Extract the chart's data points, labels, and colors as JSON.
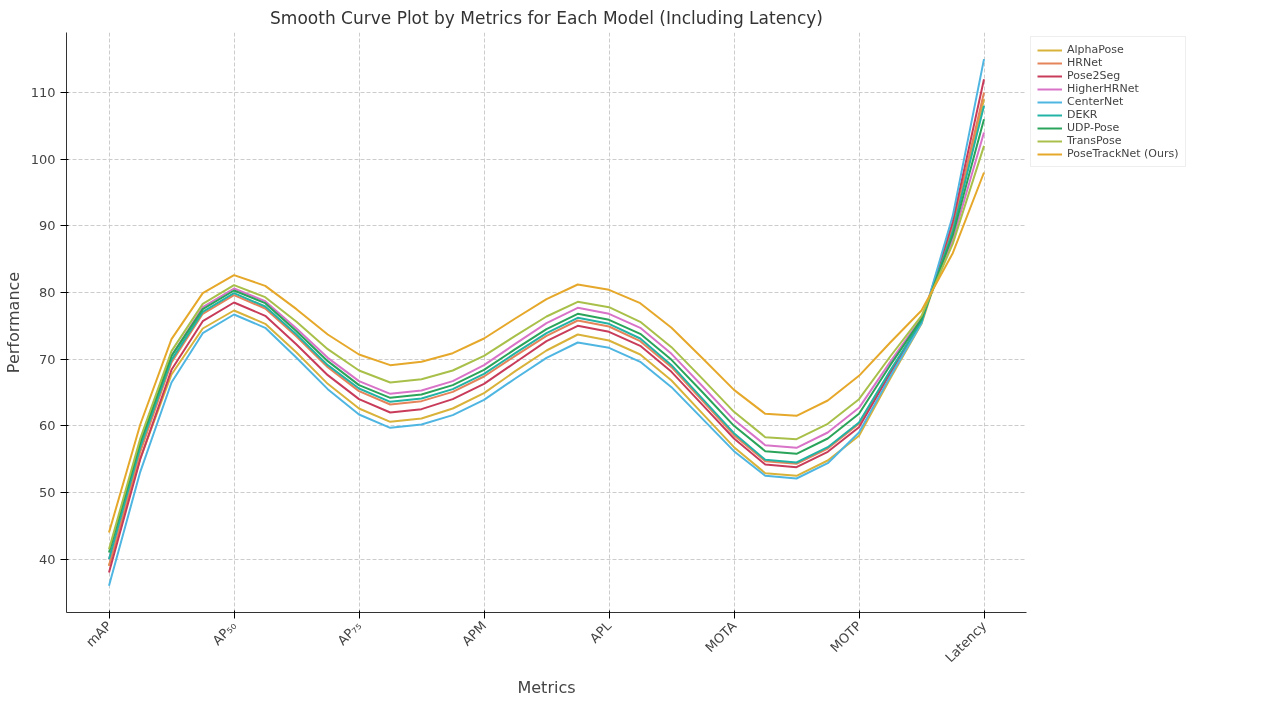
{
  "chart_data": {
    "type": "line",
    "title": "Smooth Curve Plot by Metrics for Each Model (Including Latency)",
    "xlabel": "Metrics",
    "ylabel": "Performance",
    "categories": [
      "mAP",
      null,
      null,
      null,
      "AP₅₀",
      null,
      null,
      null,
      "AP₇₅",
      null,
      null,
      null,
      "APM",
      null,
      null,
      null,
      "APL",
      null,
      null,
      null,
      "MOTA",
      null,
      null,
      null,
      "MOTP",
      null,
      null,
      null,
      "Latency"
    ],
    "ylim": [
      32,
      119
    ],
    "yticks": [
      40,
      50,
      60,
      70,
      80,
      90,
      100,
      110
    ],
    "grid": true,
    "legend": "top right",
    "marker": "none",
    "line_style": "solid",
    "series": [
      {
        "name": "AlphaPose",
        "color": "#d9b23a",
        "values": [
          39,
          55.1,
          67.7,
          74.6,
          77.3,
          75.3,
          71.0,
          66.3,
          62.6,
          60.6,
          61.1,
          62.6,
          64.9,
          68.2,
          71.3,
          73.7,
          72.8,
          70.7,
          66.8,
          61.8,
          56.8,
          52.9,
          52.5,
          54.8,
          58.5,
          67.1,
          75.3,
          89.6,
          109
        ]
      },
      {
        "name": "HRNet",
        "color": "#e5845a",
        "values": [
          39,
          56.1,
          69.5,
          76.8,
          79.6,
          77.6,
          73.4,
          68.8,
          65.2,
          63.2,
          63.7,
          65.1,
          67.4,
          70.5,
          73.5,
          75.8,
          74.9,
          72.7,
          68.8,
          63.7,
          58.6,
          54.7,
          54.3,
          56.6,
          60.3,
          68.2,
          75.7,
          89.9,
          110
        ]
      },
      {
        "name": "Pose2Seg",
        "color": "#c83c5a",
        "values": [
          38,
          55.0,
          68.4,
          75.7,
          78.5,
          76.5,
          72.2,
          67.6,
          64.0,
          62,
          62.5,
          64.0,
          66.3,
          69.5,
          72.7,
          75,
          74.1,
          72.0,
          68.1,
          63.1,
          58.1,
          54.2,
          53.8,
          56.1,
          59.8,
          67.9,
          75.6,
          90.6,
          112
        ]
      },
      {
        "name": "HigherHRNet",
        "color": "#d873c8",
        "values": [
          40,
          57.1,
          70.5,
          77.8,
          80.6,
          78.7,
          74.6,
          70.2,
          66.7,
          64.8,
          65.3,
          66.7,
          69.1,
          72.3,
          75.4,
          77.7,
          76.8,
          74.7,
          70.8,
          65.9,
          60.9,
          57.1,
          56.7,
          59.0,
          62.7,
          69.6,
          76.2,
          87.9,
          104
        ]
      },
      {
        "name": "CenterNet",
        "color": "#4fb6e2",
        "values": [
          36,
          53.1,
          66.5,
          73.9,
          76.7,
          74.7,
          70.2,
          65.5,
          61.7,
          59.7,
          60.2,
          61.6,
          63.9,
          67.1,
          70.2,
          72.5,
          71.7,
          69.6,
          65.8,
          61.0,
          56.2,
          52.5,
          52.1,
          54.4,
          59,
          67.4,
          75.4,
          91.5,
          115
        ]
      },
      {
        "name": "DEKR",
        "color": "#22b3a6",
        "values": [
          40,
          56.8,
          69.9,
          77.1,
          79.9,
          77.9,
          73.7,
          69.1,
          65.6,
          63.6,
          64.1,
          65.5,
          67.8,
          70.9,
          73.9,
          76.2,
          75.3,
          73.1,
          69.1,
          64.0,
          58.9,
          54.9,
          54.5,
          56.8,
          60.5,
          68.3,
          75.7,
          89.2,
          108
        ]
      },
      {
        "name": "UDP-Pose",
        "color": "#2aa45a",
        "values": [
          41,
          57.5,
          70.5,
          77.5,
          80.3,
          78.4,
          74.2,
          69.7,
          66.1,
          64.2,
          64.7,
          66.1,
          68.4,
          71.5,
          74.5,
          76.8,
          75.9,
          73.8,
          69.9,
          65.0,
          60.0,
          56.2,
          55.8,
          58.1,
          61.8,
          69.1,
          76.0,
          88.6,
          106
        ]
      },
      {
        "name": "TransPose",
        "color": "#a8c04a",
        "values": [
          41.5,
          58.1,
          71.2,
          78.3,
          81.1,
          79.3,
          75.6,
          71.5,
          68.3,
          66.5,
          67.0,
          68.3,
          70.5,
          73.5,
          76.4,
          78.6,
          77.8,
          75.6,
          71.8,
          67.0,
          62.1,
          58.3,
          58.0,
          60.3,
          64,
          70.4,
          76.5,
          87.3,
          102
        ]
      },
      {
        "name": "PoseTrackNet (Ours)",
        "color": "#e6a82a",
        "values": [
          44,
          60.2,
          73.0,
          79.9,
          82.6,
          81.0,
          77.5,
          73.7,
          70.7,
          69.1,
          69.6,
          70.9,
          73.1,
          76.1,
          79.0,
          81.2,
          80.4,
          78.4,
          74.7,
          70.1,
          65.4,
          61.8,
          61.5,
          63.8,
          67.5,
          72.5,
          77.3,
          85.9,
          98
        ]
      }
    ]
  }
}
